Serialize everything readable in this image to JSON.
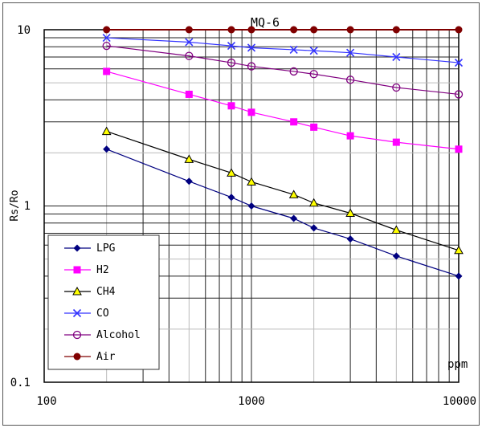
{
  "chart_data": {
    "type": "line",
    "title": "MQ-6",
    "xlabel": "ppm",
    "ylabel": "Rs/Ro",
    "xscale": "log",
    "yscale": "log",
    "xlim": [
      100,
      10000
    ],
    "ylim": [
      0.1,
      10
    ],
    "grid": true,
    "legend_position": "bottom-left",
    "x_tick_labels": [
      "100",
      "1000",
      "10000"
    ],
    "y_tick_labels": [
      "0.1",
      "1",
      "10"
    ],
    "x": [
      200,
      500,
      800,
      1000,
      1600,
      2000,
      3000,
      5000,
      10000
    ],
    "series": [
      {
        "name": "LPG",
        "color": "#000080",
        "marker": "diamond",
        "values": [
          2.1,
          1.38,
          1.12,
          1.0,
          0.85,
          0.75,
          0.65,
          0.52,
          0.4
        ]
      },
      {
        "name": "H2",
        "color": "#ff00ff",
        "marker": "square",
        "values": [
          5.8,
          4.3,
          3.7,
          3.4,
          3.0,
          2.8,
          2.5,
          2.3,
          2.1
        ]
      },
      {
        "name": "CH4",
        "color": "#000000",
        "marker": "triangle",
        "values": [
          2.65,
          1.84,
          1.54,
          1.37,
          1.16,
          1.04,
          0.91,
          0.73,
          0.56
        ]
      },
      {
        "name": "CO",
        "color": "#3333ff",
        "marker": "x",
        "values": [
          9.0,
          8.5,
          8.1,
          7.9,
          7.7,
          7.6,
          7.4,
          7.0,
          6.5
        ]
      },
      {
        "name": "Alcohol",
        "color": "#800080",
        "marker": "circle-open",
        "values": [
          8.1,
          7.1,
          6.5,
          6.2,
          5.8,
          5.6,
          5.2,
          4.7,
          4.3
        ]
      },
      {
        "name": "Air",
        "color": "#800000",
        "marker": "circle",
        "values": [
          10,
          10,
          10,
          10,
          10,
          10,
          10,
          10,
          10
        ]
      }
    ]
  }
}
